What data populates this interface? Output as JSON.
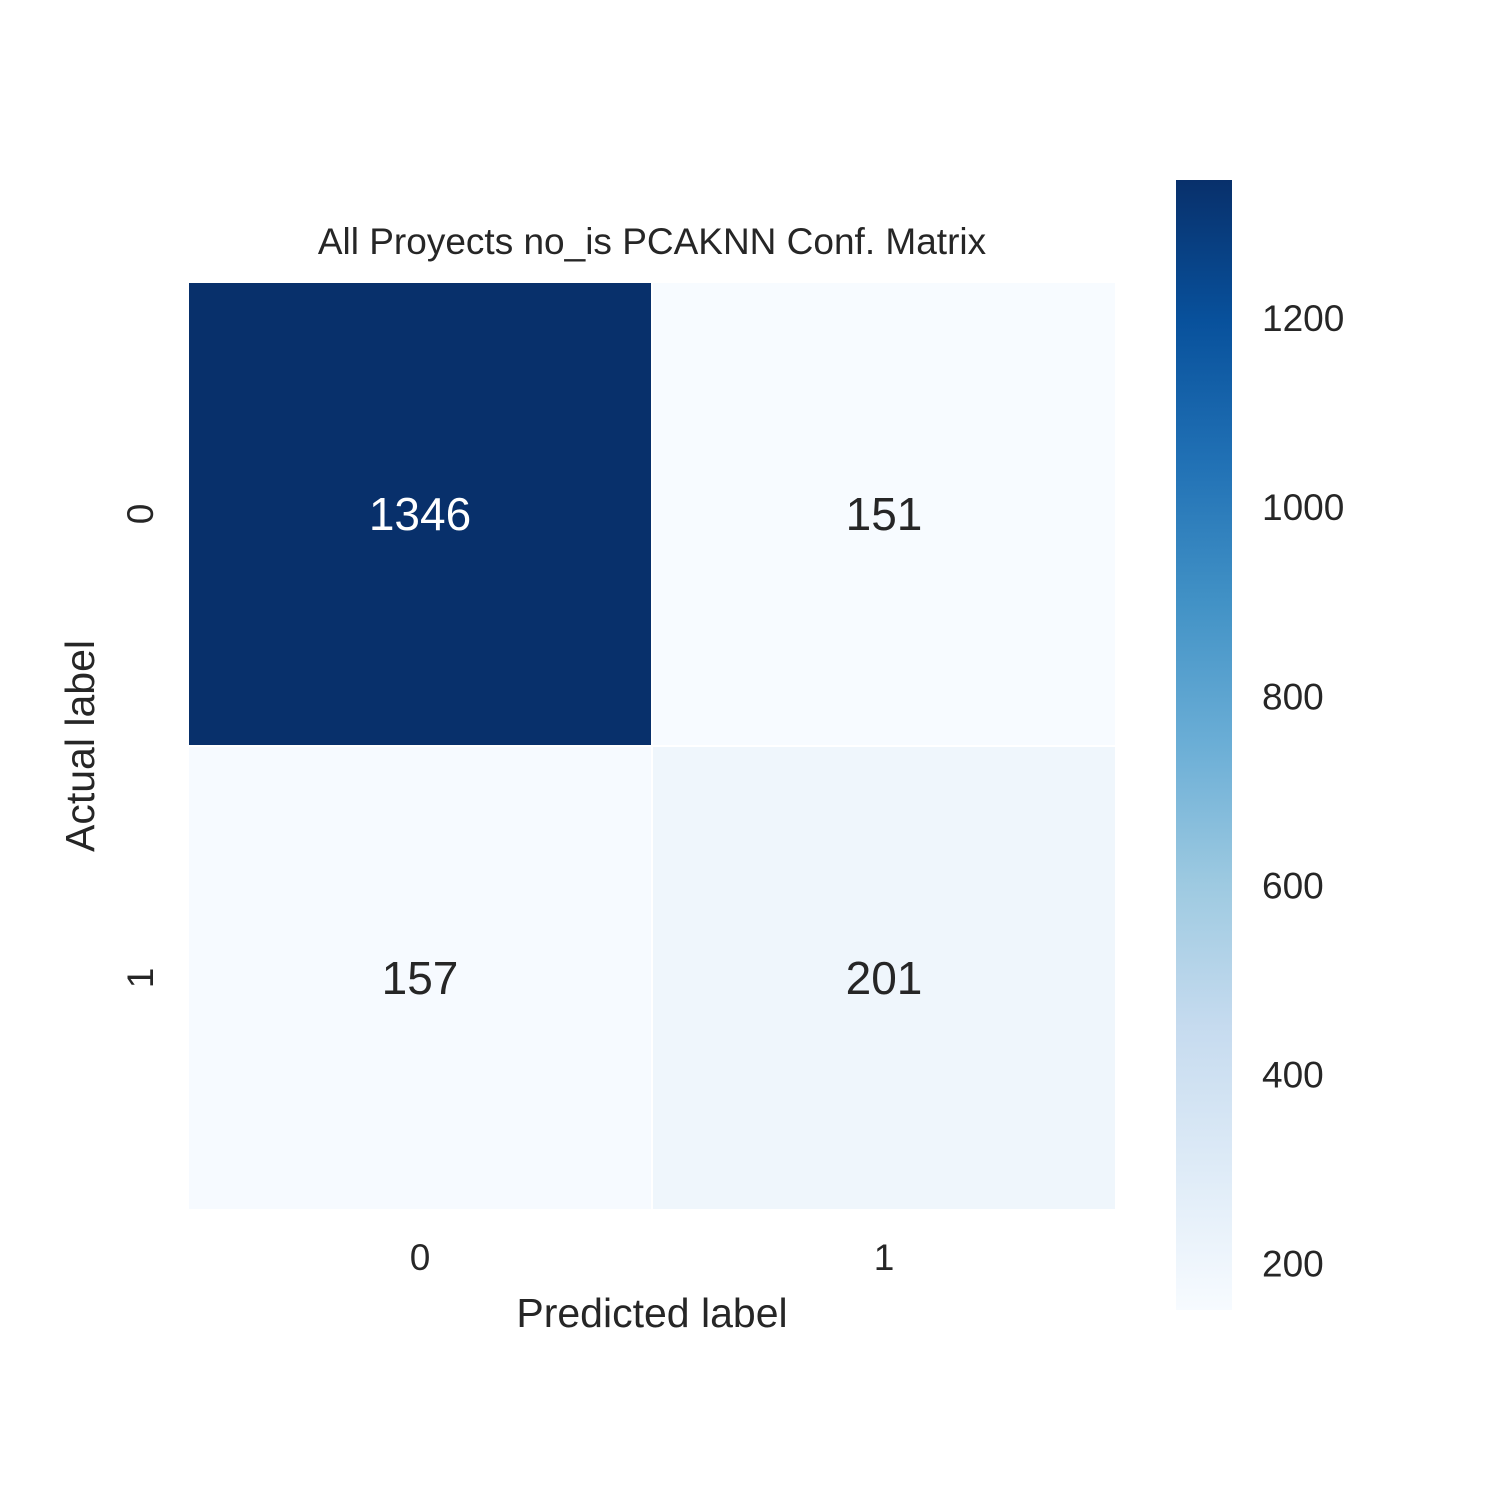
{
  "chart_data": {
    "type": "heatmap",
    "title": "All Proyects no_is PCAKNN Conf. Matrix",
    "xlabel": "Predicted label",
    "ylabel": "Actual label",
    "x_categories": [
      "0",
      "1"
    ],
    "y_categories": [
      "0",
      "1"
    ],
    "values": [
      [
        1346,
        151
      ],
      [
        157,
        201
      ]
    ],
    "colormap": "Blues",
    "colorbar": {
      "range": [
        151,
        1346
      ],
      "ticks": [
        200,
        400,
        600,
        800,
        1000,
        1200
      ],
      "tick_labels": [
        "200",
        "400",
        "600",
        "800",
        "1000",
        "1200"
      ]
    },
    "colors": {
      "low": "#f7fbff",
      "high": "#08306b",
      "text_dark": "#262626",
      "text_light": "#ffffff",
      "cell_border": "#ffffff"
    }
  }
}
